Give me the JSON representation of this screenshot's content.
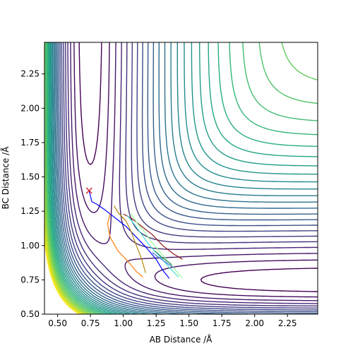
{
  "chart_data": {
    "type": "contour",
    "title": "",
    "xlabel": "AB Distance /Å",
    "ylabel": "BC Distance /Å",
    "xlim": [
      0.4,
      2.48
    ],
    "ylim": [
      0.5,
      2.48
    ],
    "xticks": [
      0.5,
      0.75,
      1.0,
      1.25,
      1.5,
      1.75,
      2.0,
      2.25
    ],
    "xtick_labels": [
      "0.50",
      "0.75",
      "1.00",
      "1.25",
      "1.50",
      "1.75",
      "2.00",
      "2.25"
    ],
    "yticks": [
      0.5,
      0.75,
      1.0,
      1.25,
      1.5,
      1.75,
      2.0,
      2.25
    ],
    "ytick_labels": [
      "0.50",
      "0.75",
      "1.00",
      "1.25",
      "1.50",
      "1.75",
      "2.00",
      "2.25"
    ],
    "grid": false,
    "colormap": "viridis",
    "contour_level_count": 30,
    "start_marker": {
      "x": 0.74,
      "y": 1.4,
      "symbol": "x",
      "color": "#d62728"
    },
    "trajectories": [
      {
        "color": "#0000ff",
        "points": [
          [
            0.74,
            1.4
          ],
          [
            0.76,
            1.32
          ],
          [
            0.8,
            1.3
          ],
          [
            0.86,
            1.26
          ],
          [
            0.94,
            1.2
          ],
          [
            1.02,
            1.14
          ],
          [
            1.1,
            1.06
          ],
          [
            1.18,
            0.98
          ],
          [
            1.25,
            0.9
          ],
          [
            1.3,
            0.82
          ],
          [
            1.35,
            0.76
          ]
        ]
      },
      {
        "color": "#ff7f0e",
        "points": [
          [
            0.9,
            1.23
          ],
          [
            0.88,
            1.16
          ],
          [
            0.9,
            1.06
          ],
          [
            0.96,
            0.96
          ],
          [
            1.04,
            0.88
          ],
          [
            1.1,
            0.81
          ],
          [
            1.15,
            0.77
          ]
        ]
      },
      {
        "color": "#b8860b",
        "points": [
          [
            0.93,
            1.29
          ],
          [
            0.96,
            1.24
          ],
          [
            1.02,
            1.18
          ],
          [
            1.06,
            1.1
          ],
          [
            1.1,
            1.0
          ],
          [
            1.14,
            0.9
          ],
          [
            1.17,
            0.8
          ]
        ]
      },
      {
        "color": "#8b1a1a",
        "points": [
          [
            1.0,
            1.23
          ],
          [
            1.06,
            1.2
          ],
          [
            1.14,
            1.14
          ],
          [
            1.22,
            1.08
          ],
          [
            1.3,
            1.0
          ],
          [
            1.38,
            0.94
          ],
          [
            1.45,
            0.9
          ]
        ]
      },
      {
        "color": "#40e0d0",
        "points": [
          [
            1.03,
            1.22
          ],
          [
            1.08,
            1.16
          ],
          [
            1.14,
            1.08
          ],
          [
            1.2,
            1.0
          ],
          [
            1.28,
            0.92
          ],
          [
            1.35,
            0.84
          ],
          [
            1.42,
            0.77
          ]
        ]
      },
      {
        "color": "#98fb98",
        "points": [
          [
            1.06,
            1.23
          ],
          [
            1.1,
            1.17
          ],
          [
            1.16,
            1.1
          ],
          [
            1.22,
            1.02
          ],
          [
            1.3,
            0.93
          ],
          [
            1.38,
            0.84
          ],
          [
            1.45,
            0.76
          ]
        ]
      },
      {
        "color": "#4169e1",
        "points": [
          [
            1.22,
            0.95
          ],
          [
            1.26,
            0.92
          ],
          [
            1.32,
            0.88
          ],
          [
            1.38,
            0.84
          ]
        ]
      },
      {
        "color": "#2e8b57",
        "points": [
          [
            1.24,
            0.96
          ],
          [
            1.3,
            0.91
          ],
          [
            1.37,
            0.86
          ]
        ]
      }
    ]
  }
}
